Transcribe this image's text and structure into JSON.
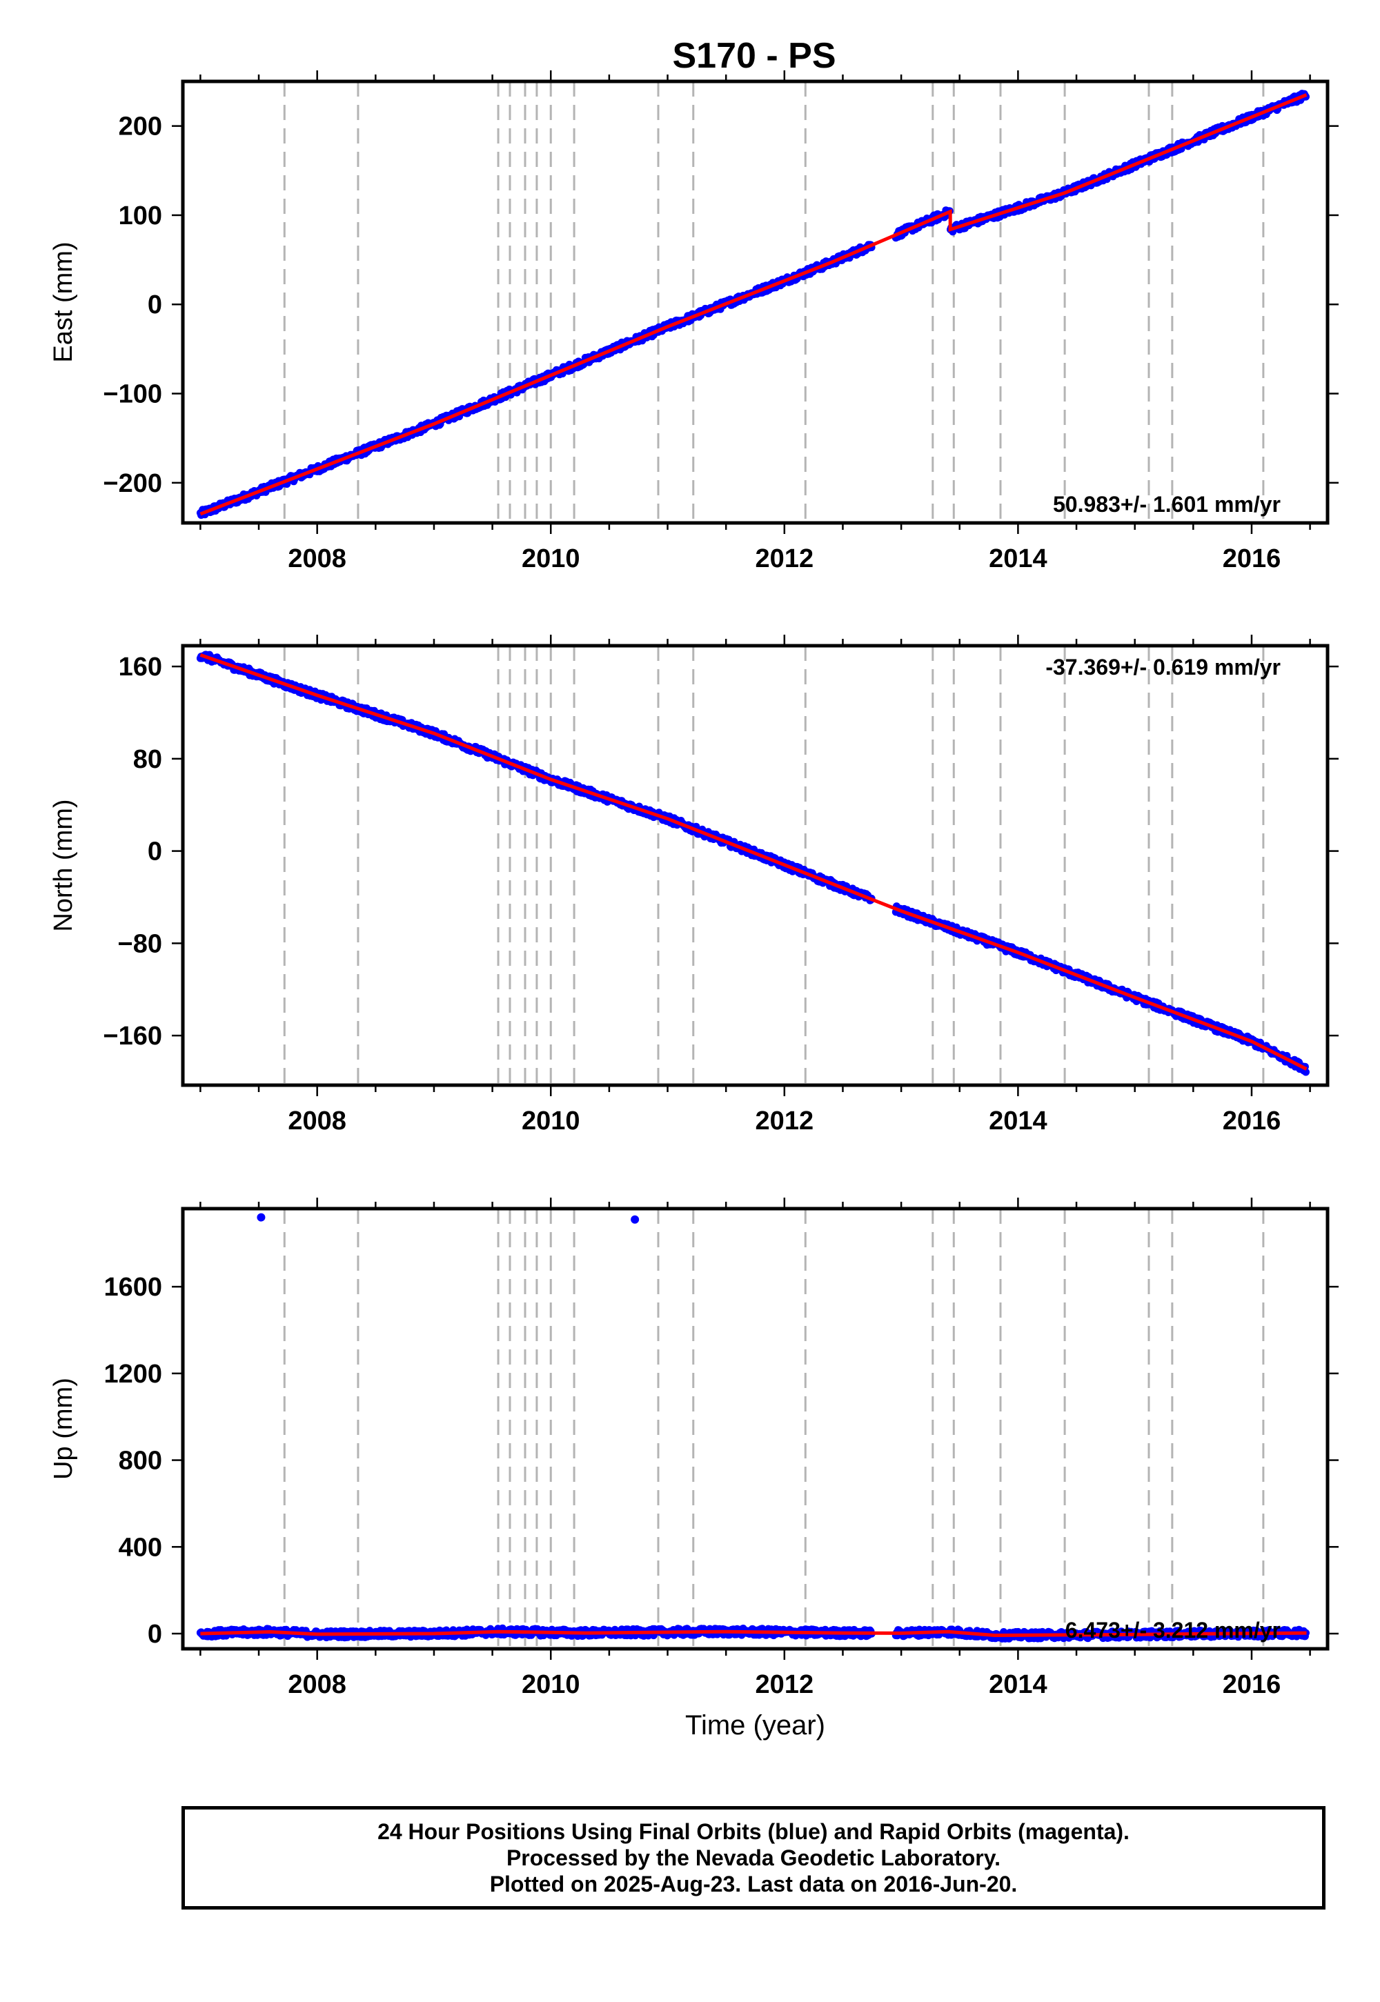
{
  "title": "S170 - PS",
  "colors": {
    "data_points": "#0000ff",
    "fit_line": "#ff0000",
    "event_lines": "#b4b4b4",
    "frame": "#000000"
  },
  "chart_data": [
    {
      "type": "scatter",
      "name": "east",
      "ylabel": "East (mm)",
      "xlabel": "",
      "xlim": [
        2006.85,
        2016.65
      ],
      "ylim": [
        -245,
        250
      ],
      "xticks": [
        2008,
        2010,
        2012,
        2014,
        2016
      ],
      "yticks": [
        -200,
        -100,
        0,
        100,
        200
      ],
      "ytick_labels": [
        "−200",
        "−100",
        "0",
        "100",
        "200"
      ],
      "rate_label": "50.983+/- 1.601 mm/yr",
      "rate_position": "bottom-right",
      "trend": [
        [
          2007.0,
          -235
        ],
        [
          2009.0,
          -134
        ],
        [
          2011.0,
          -25
        ],
        [
          2012.4,
          47
        ],
        [
          2013.42,
          104
        ],
        [
          2013.42,
          84
        ],
        [
          2014.4,
          125
        ],
        [
          2016.47,
          235
        ]
      ],
      "gap": [
        2012.75,
        2012.95
      ],
      "outliers": []
    },
    {
      "type": "scatter",
      "name": "north",
      "ylabel": "North (mm)",
      "xlabel": "",
      "xlim": [
        2006.85,
        2016.65
      ],
      "ylim": [
        -203,
        178
      ],
      "xticks": [
        2008,
        2010,
        2012,
        2014,
        2016
      ],
      "yticks": [
        -160,
        -80,
        0,
        80,
        160
      ],
      "ytick_labels": [
        "−160",
        "−80",
        "0",
        "80",
        "160"
      ],
      "rate_label": "-37.369+/- 0.619 mm/yr",
      "rate_position": "top-right",
      "trend": [
        [
          2007.0,
          170
        ],
        [
          2008.0,
          135
        ],
        [
          2009.0,
          102
        ],
        [
          2010.0,
          62
        ],
        [
          2011.0,
          28
        ],
        [
          2012.0,
          -12
        ],
        [
          2013.0,
          -52
        ],
        [
          2014.0,
          -88
        ],
        [
          2015.0,
          -127
        ],
        [
          2016.0,
          -165
        ],
        [
          2016.47,
          -189
        ]
      ],
      "gap": [
        2012.75,
        2012.95
      ],
      "outliers": []
    },
    {
      "type": "scatter",
      "name": "up",
      "ylabel": "Up (mm)",
      "xlabel": "Time (year)",
      "xlim": [
        2006.85,
        2016.65
      ],
      "ylim": [
        -70,
        1960
      ],
      "xticks": [
        2008,
        2010,
        2012,
        2014,
        2016
      ],
      "yticks": [
        0,
        400,
        800,
        1200,
        1600
      ],
      "ytick_labels": [
        "0",
        "400",
        "800",
        "1200",
        "1600"
      ],
      "rate_label": "6.473+/- 3.212 mm/yr",
      "rate_position": "bottom-right",
      "trend": [
        [
          2007.0,
          0
        ],
        [
          2007.6,
          8
        ],
        [
          2008.0,
          -3
        ],
        [
          2009.0,
          0
        ],
        [
          2009.55,
          9
        ],
        [
          2010.3,
          3
        ],
        [
          2011.5,
          9
        ],
        [
          2012.5,
          3
        ],
        [
          2013.0,
          2
        ],
        [
          2013.4,
          9
        ],
        [
          2013.8,
          -8
        ],
        [
          2014.8,
          -5
        ],
        [
          2015.8,
          0
        ],
        [
          2016.47,
          3
        ]
      ],
      "gap": [
        2012.75,
        2012.95
      ],
      "outliers": [
        [
          2007.52,
          1920
        ],
        [
          2010.72,
          1910
        ]
      ]
    }
  ],
  "event_lines": [
    2007.72,
    2008.35,
    2009.55,
    2009.65,
    2009.78,
    2009.88,
    2010.0,
    2010.2,
    2010.92,
    2011.22,
    2012.18,
    2013.27,
    2013.45,
    2013.85,
    2014.4,
    2015.12,
    2015.32,
    2016.1
  ],
  "footer": {
    "line1": "24 Hour Positions Using Final Orbits (blue) and Rapid Orbits (magenta).",
    "line2": "Processed by the Nevada Geodetic Laboratory.",
    "line3": "Plotted on 2025-Aug-23. Last data on 2016-Jun-20."
  }
}
